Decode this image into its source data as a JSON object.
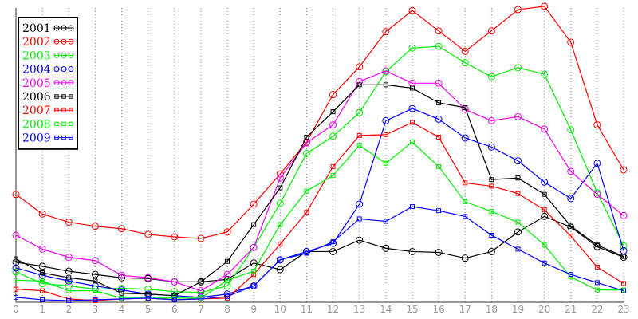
{
  "chart_data": {
    "type": "line",
    "title": "",
    "xlabel": "",
    "ylabel": "",
    "x": [
      0,
      1,
      2,
      3,
      4,
      5,
      6,
      7,
      8,
      9,
      10,
      11,
      12,
      13,
      14,
      15,
      16,
      17,
      18,
      19,
      20,
      21,
      22,
      23
    ],
    "xlim": [
      0,
      23
    ],
    "ylim": [
      0,
      360
    ],
    "grid": "vertical-dotted",
    "legend_position": "top-left",
    "series": [
      {
        "name": "2001",
        "marker": "circle",
        "color": "#000000",
        "values": [
          49,
          44,
          38,
          34,
          30,
          29,
          25,
          25,
          28,
          48,
          40,
          62,
          62,
          76,
          66,
          62,
          61,
          54,
          62,
          86,
          105,
          92,
          68,
          55
        ]
      },
      {
        "name": "2002",
        "marker": "circle",
        "color": "#ff0000",
        "values": [
          132,
          108,
          98,
          93,
          90,
          83,
          80,
          78,
          86,
          120,
          157,
          196,
          254,
          288,
          331,
          357,
          332,
          307,
          332,
          358,
          362,
          318,
          217,
          162
        ]
      },
      {
        "name": "2003",
        "marker": "circle",
        "color": "#00ee00",
        "values": [
          37,
          23,
          20,
          16,
          17,
          16,
          13,
          12,
          20,
          67,
          121,
          182,
          203,
          232,
          282,
          311,
          313,
          293,
          276,
          287,
          279,
          211,
          134,
          69
        ]
      },
      {
        "name": "2004",
        "marker": "circle",
        "color": "#0000ff",
        "values": [
          42,
          33,
          26,
          20,
          15,
          10,
          8,
          6,
          10,
          20,
          52,
          62,
          72,
          120,
          222,
          237,
          224,
          201,
          190,
          173,
          147,
          127,
          170,
          63
        ]
      },
      {
        "name": "2005",
        "marker": "circle",
        "color": "#ee00ee",
        "values": [
          82,
          65,
          55,
          51,
          33,
          30,
          25,
          14,
          34,
          67,
          152,
          195,
          217,
          270,
          283,
          268,
          268,
          236,
          222,
          227,
          212,
          160,
          132,
          106
        ]
      },
      {
        "name": "2006",
        "marker": "square",
        "color": "#000000",
        "values": [
          53,
          36,
          30,
          26,
          11,
          10,
          8,
          25,
          50,
          95,
          140,
          202,
          233,
          266,
          266,
          262,
          244,
          238,
          150,
          152,
          132,
          93,
          70,
          56
        ]
      },
      {
        "name": "2007",
        "marker": "square",
        "color": "#ff0000",
        "values": [
          16,
          14,
          4,
          2,
          4,
          5,
          3,
          4,
          5,
          34,
          71,
          110,
          166,
          204,
          205,
          220,
          202,
          146,
          142,
          133,
          113,
          81,
          43,
          23
        ]
      },
      {
        "name": "2008",
        "marker": "square",
        "color": "#00ee00",
        "values": [
          27,
          26,
          14,
          14,
          5,
          5,
          5,
          5,
          27,
          38,
          95,
          136,
          155,
          192,
          170,
          196,
          166,
          123,
          111,
          98,
          70,
          31,
          15,
          15
        ]
      },
      {
        "name": "2009",
        "marker": "square",
        "color": "#0000ff",
        "values": [
          6,
          3,
          2,
          3,
          4,
          5,
          3,
          4,
          7,
          20,
          52,
          60,
          74,
          102,
          99,
          117,
          112,
          105,
          82,
          65,
          48,
          34,
          24,
          14
        ]
      }
    ]
  }
}
